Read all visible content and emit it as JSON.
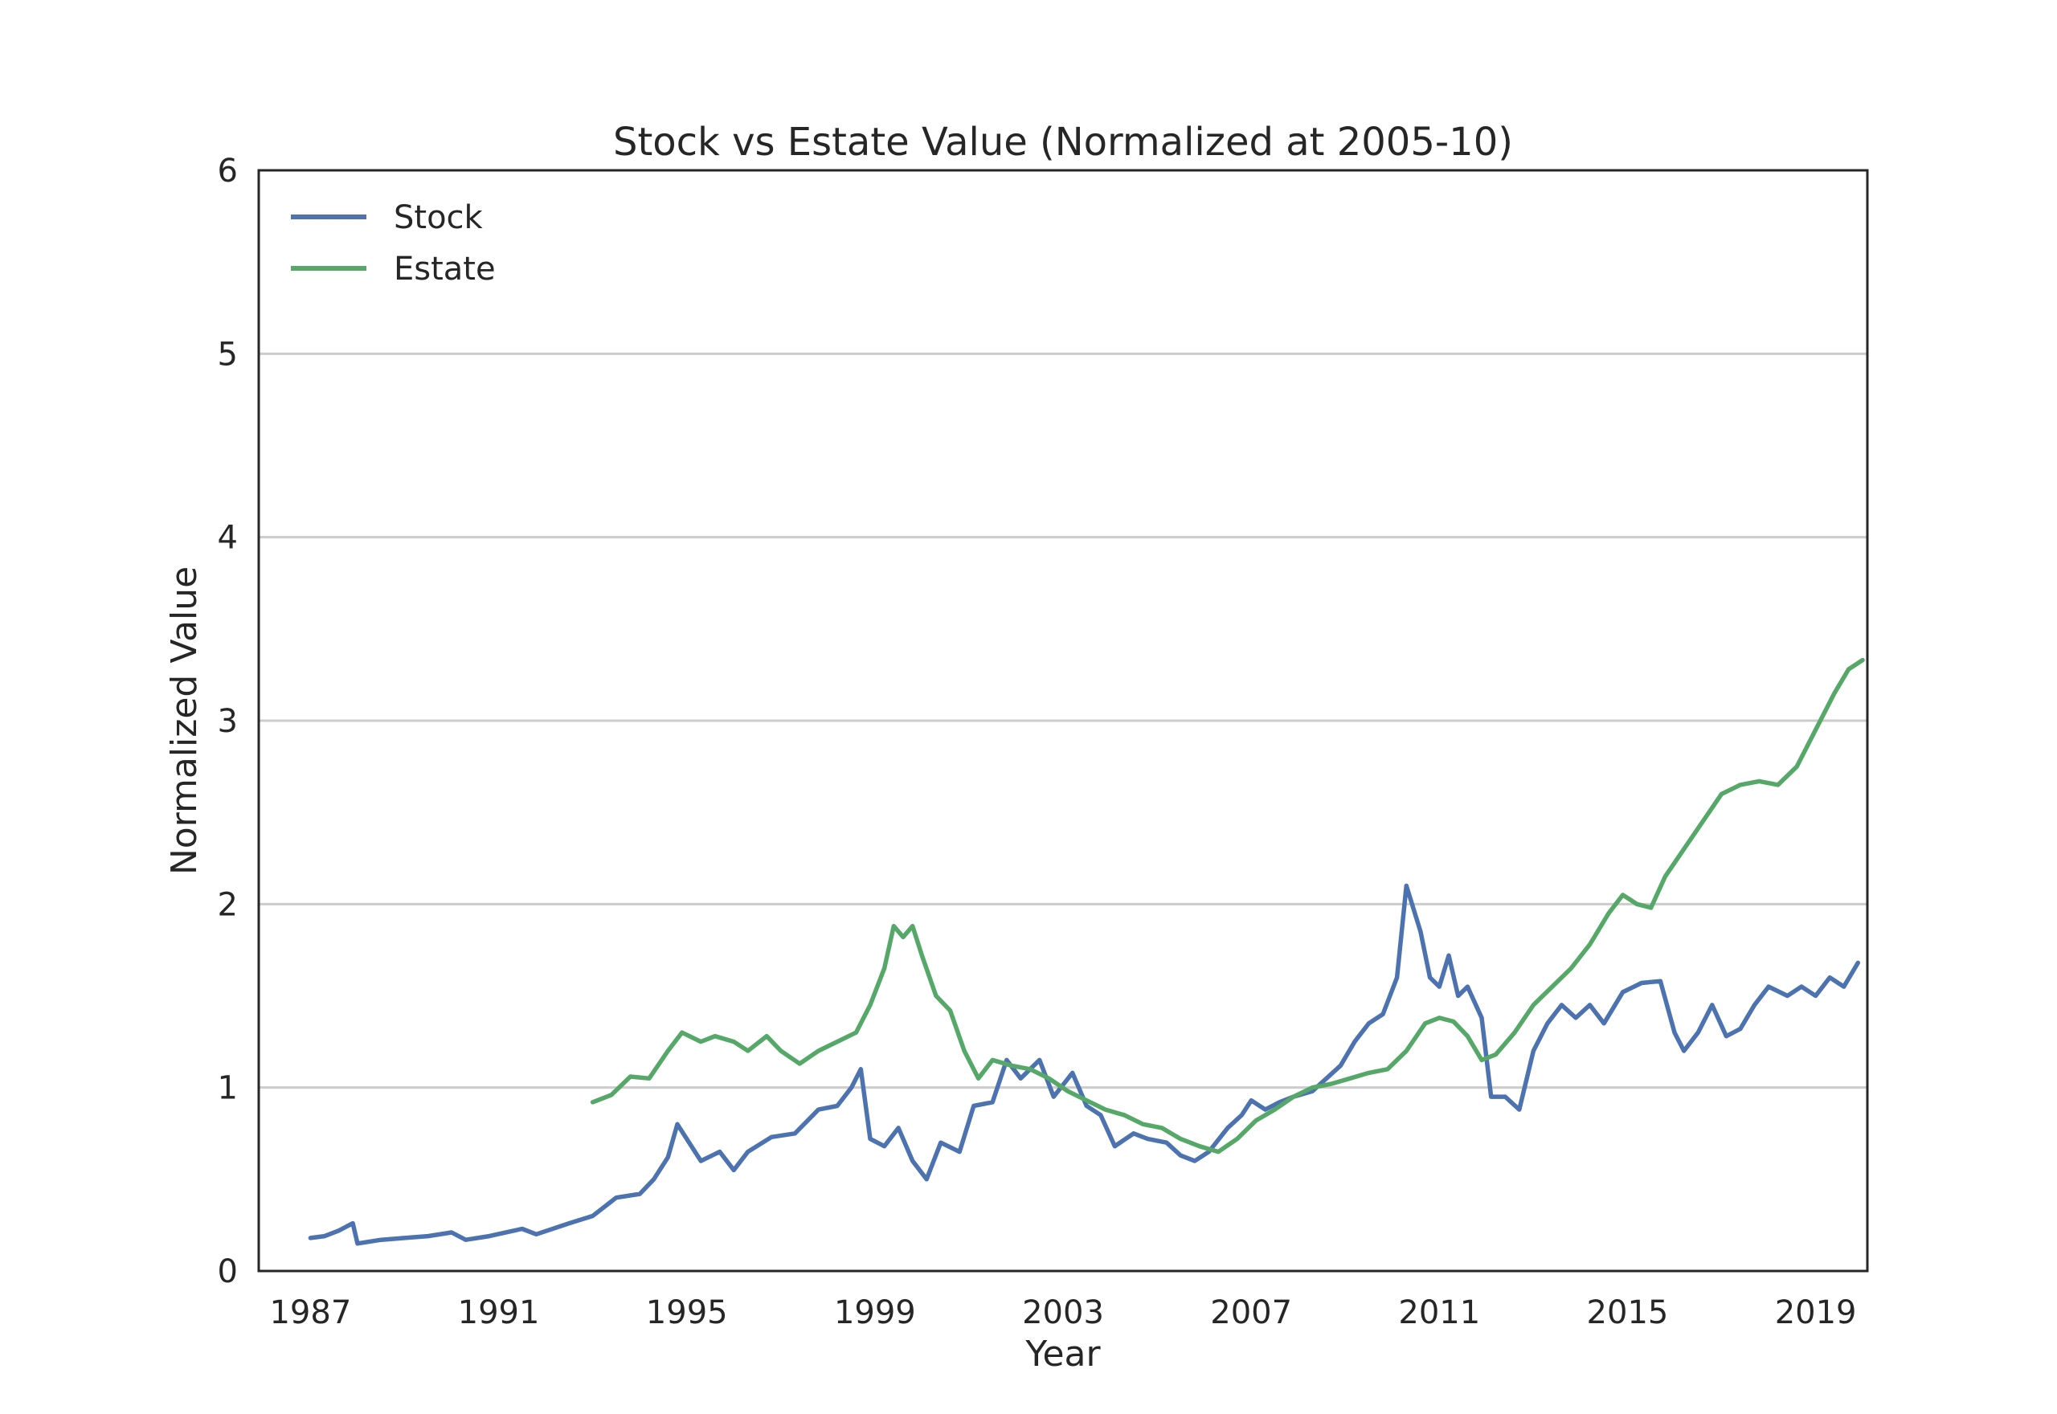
{
  "chart_data": {
    "type": "line",
    "title": "Stock vs Estate Value (Normalized at 2005-10)",
    "xlabel": "Year",
    "ylabel": "Normalized Value",
    "xlim": [
      1985.9,
      2020.1
    ],
    "ylim": [
      0,
      6
    ],
    "x_ticks": [
      "1987",
      "1991",
      "1995",
      "1999",
      "2003",
      "2007",
      "2011",
      "2015",
      "2019"
    ],
    "y_ticks": [
      "0",
      "1",
      "2",
      "3",
      "4",
      "5",
      "6"
    ],
    "grid": "horizontal",
    "legend_position": "top-left",
    "series": [
      {
        "name": "Stock",
        "color": "#4c72b0",
        "points": [
          [
            1987.0,
            0.18
          ],
          [
            1987.3,
            0.19
          ],
          [
            1987.6,
            0.22
          ],
          [
            1987.9,
            0.26
          ],
          [
            1988.0,
            0.15
          ],
          [
            1988.5,
            0.17
          ],
          [
            1989.0,
            0.18
          ],
          [
            1989.5,
            0.19
          ],
          [
            1990.0,
            0.21
          ],
          [
            1990.3,
            0.17
          ],
          [
            1990.8,
            0.19
          ],
          [
            1991.5,
            0.23
          ],
          [
            1991.8,
            0.2
          ],
          [
            1992.5,
            0.26
          ],
          [
            1993.0,
            0.3
          ],
          [
            1993.5,
            0.4
          ],
          [
            1994.0,
            0.42
          ],
          [
            1994.3,
            0.5
          ],
          [
            1994.6,
            0.62
          ],
          [
            1994.8,
            0.8
          ],
          [
            1995.0,
            0.72
          ],
          [
            1995.3,
            0.6
          ],
          [
            1995.7,
            0.65
          ],
          [
            1996.0,
            0.55
          ],
          [
            1996.3,
            0.65
          ],
          [
            1996.8,
            0.73
          ],
          [
            1997.3,
            0.75
          ],
          [
            1997.8,
            0.88
          ],
          [
            1998.2,
            0.9
          ],
          [
            1998.5,
            1.0
          ],
          [
            1998.7,
            1.1
          ],
          [
            1998.9,
            0.72
          ],
          [
            1999.2,
            0.68
          ],
          [
            1999.5,
            0.78
          ],
          [
            1999.8,
            0.6
          ],
          [
            2000.1,
            0.5
          ],
          [
            2000.4,
            0.7
          ],
          [
            2000.8,
            0.65
          ],
          [
            2001.1,
            0.9
          ],
          [
            2001.5,
            0.92
          ],
          [
            2001.8,
            1.15
          ],
          [
            2002.1,
            1.05
          ],
          [
            2002.5,
            1.15
          ],
          [
            2002.8,
            0.95
          ],
          [
            2003.2,
            1.08
          ],
          [
            2003.5,
            0.9
          ],
          [
            2003.8,
            0.85
          ],
          [
            2004.1,
            0.68
          ],
          [
            2004.5,
            0.75
          ],
          [
            2004.8,
            0.72
          ],
          [
            2005.2,
            0.7
          ],
          [
            2005.5,
            0.63
          ],
          [
            2005.8,
            0.6
          ],
          [
            2006.1,
            0.65
          ],
          [
            2006.5,
            0.78
          ],
          [
            2006.8,
            0.85
          ],
          [
            2007.0,
            0.93
          ],
          [
            2007.3,
            0.88
          ],
          [
            2007.6,
            0.92
          ],
          [
            2007.9,
            0.95
          ],
          [
            2008.3,
            0.98
          ],
          [
            2008.6,
            1.05
          ],
          [
            2008.9,
            1.12
          ],
          [
            2009.2,
            1.25
          ],
          [
            2009.5,
            1.35
          ],
          [
            2009.8,
            1.4
          ],
          [
            2010.1,
            1.6
          ],
          [
            2010.3,
            2.1
          ],
          [
            2010.6,
            1.85
          ],
          [
            2010.8,
            1.6
          ],
          [
            2011.0,
            1.55
          ],
          [
            2011.2,
            1.72
          ],
          [
            2011.4,
            1.5
          ],
          [
            2011.6,
            1.55
          ],
          [
            2011.9,
            1.38
          ],
          [
            2012.1,
            0.95
          ],
          [
            2012.4,
            0.95
          ],
          [
            2012.7,
            0.88
          ],
          [
            2013.0,
            1.2
          ],
          [
            2013.3,
            1.35
          ],
          [
            2013.6,
            1.45
          ],
          [
            2013.9,
            1.38
          ],
          [
            2014.2,
            1.45
          ],
          [
            2014.5,
            1.35
          ],
          [
            2014.9,
            1.52
          ],
          [
            2015.3,
            1.57
          ],
          [
            2015.7,
            1.58
          ],
          [
            2016.0,
            1.3
          ],
          [
            2016.2,
            1.2
          ],
          [
            2016.5,
            1.3
          ],
          [
            2016.8,
            1.45
          ],
          [
            2017.1,
            1.28
          ],
          [
            2017.4,
            1.32
          ],
          [
            2017.7,
            1.45
          ],
          [
            2018.0,
            1.55
          ],
          [
            2018.4,
            1.5
          ],
          [
            2018.7,
            1.55
          ],
          [
            2019.0,
            1.5
          ],
          [
            2019.3,
            1.6
          ],
          [
            2019.6,
            1.55
          ],
          [
            2019.9,
            1.68
          ]
        ]
      },
      {
        "name": "Estate",
        "color": "#55a868",
        "points": [
          [
            1993.0,
            0.92
          ],
          [
            1993.4,
            0.96
          ],
          [
            1993.8,
            1.06
          ],
          [
            1994.2,
            1.05
          ],
          [
            1994.6,
            1.2
          ],
          [
            1994.9,
            1.3
          ],
          [
            1995.3,
            1.25
          ],
          [
            1995.6,
            1.28
          ],
          [
            1996.0,
            1.25
          ],
          [
            1996.3,
            1.2
          ],
          [
            1996.7,
            1.28
          ],
          [
            1997.0,
            1.2
          ],
          [
            1997.4,
            1.13
          ],
          [
            1997.8,
            1.2
          ],
          [
            1998.2,
            1.25
          ],
          [
            1998.6,
            1.3
          ],
          [
            1998.9,
            1.45
          ],
          [
            1999.2,
            1.65
          ],
          [
            1999.4,
            1.88
          ],
          [
            1999.6,
            1.82
          ],
          [
            1999.8,
            1.88
          ],
          [
            2000.0,
            1.72
          ],
          [
            2000.3,
            1.5
          ],
          [
            2000.6,
            1.42
          ],
          [
            2000.9,
            1.2
          ],
          [
            2001.2,
            1.05
          ],
          [
            2001.5,
            1.15
          ],
          [
            2001.9,
            1.12
          ],
          [
            2002.3,
            1.1
          ],
          [
            2002.7,
            1.05
          ],
          [
            2003.1,
            0.98
          ],
          [
            2003.5,
            0.93
          ],
          [
            2003.9,
            0.88
          ],
          [
            2004.3,
            0.85
          ],
          [
            2004.7,
            0.8
          ],
          [
            2005.1,
            0.78
          ],
          [
            2005.5,
            0.72
          ],
          [
            2005.9,
            0.68
          ],
          [
            2006.3,
            0.65
          ],
          [
            2006.7,
            0.72
          ],
          [
            2007.1,
            0.82
          ],
          [
            2007.5,
            0.88
          ],
          [
            2007.9,
            0.95
          ],
          [
            2008.3,
            1.0
          ],
          [
            2008.7,
            1.02
          ],
          [
            2009.1,
            1.05
          ],
          [
            2009.5,
            1.08
          ],
          [
            2009.9,
            1.1
          ],
          [
            2010.3,
            1.2
          ],
          [
            2010.7,
            1.35
          ],
          [
            2011.0,
            1.38
          ],
          [
            2011.3,
            1.36
          ],
          [
            2011.6,
            1.28
          ],
          [
            2011.9,
            1.15
          ],
          [
            2012.2,
            1.18
          ],
          [
            2012.6,
            1.3
          ],
          [
            2013.0,
            1.45
          ],
          [
            2013.4,
            1.55
          ],
          [
            2013.8,
            1.65
          ],
          [
            2014.2,
            1.78
          ],
          [
            2014.6,
            1.95
          ],
          [
            2014.9,
            2.05
          ],
          [
            2015.2,
            2.0
          ],
          [
            2015.5,
            1.98
          ],
          [
            2015.8,
            2.15
          ],
          [
            2016.2,
            2.3
          ],
          [
            2016.6,
            2.45
          ],
          [
            2017.0,
            2.6
          ],
          [
            2017.4,
            2.65
          ],
          [
            2017.8,
            2.67
          ],
          [
            2018.2,
            2.65
          ],
          [
            2018.6,
            2.75
          ],
          [
            2019.0,
            2.95
          ],
          [
            2019.4,
            3.15
          ],
          [
            2019.7,
            3.28
          ],
          [
            2020.0,
            3.33
          ]
        ]
      }
    ]
  }
}
